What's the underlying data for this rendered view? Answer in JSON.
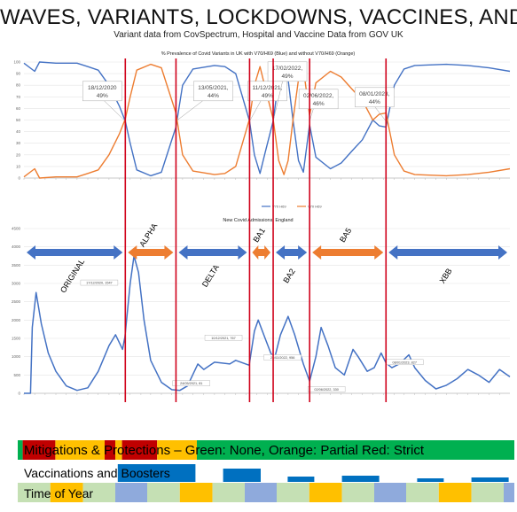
{
  "header": {
    "title": "WAVES, VARIANTS, LOCKDOWNS, VACCINES, AND STUFF",
    "subtitle": "Variant data from CovSpectrum, Hospital and Vaccine Data from GOV UK"
  },
  "bottom_panel": {
    "mitigation_label": "Mitigations & Protections – Green: None, Orange: Partial Red: Strict",
    "vaccination_label": "Vaccinations and Boosters",
    "time_of_year_label": "Time of Year"
  },
  "colors": {
    "blue_series": "#4472c4",
    "orange_series": "#ed7d31",
    "red_lines": "#d0021b",
    "arrow_blue": "#4472c4",
    "arrow_orange": "#ed7d31",
    "mit_green": "#00b050",
    "mit_red": "#c00000",
    "mit_orange": "#ffc000",
    "vacc_blue": "#0070c0",
    "toy_blue": "#8faadc",
    "toy_yellow": "#ffc000",
    "toy_green": "#c5e0b4"
  },
  "chart_data": [
    {
      "type": "line",
      "title": "% Prevalence of Covid Variants in UK with V70/H69 (Blue) and without V70/H69 (Orange)",
      "ylim": [
        0,
        100
      ],
      "yticks": [
        "0",
        "10",
        "20",
        "30",
        "40",
        "50",
        "60",
        "70",
        "80",
        "90",
        "100"
      ],
      "legend": [
        "V70 H69",
        "V70 H69"
      ],
      "legend_position": "bottom",
      "x_range": [
        "2020-03-01",
        "2023-12-31"
      ],
      "series": [
        {
          "key": "with",
          "points": [
            [
              "2020-03-01",
              99
            ],
            [
              "2020-04-01",
              92
            ],
            [
              "2020-04-15",
              100
            ],
            [
              "2020-06-01",
              99
            ],
            [
              "2020-08-01",
              99
            ],
            [
              "2020-09-01",
              96
            ],
            [
              "2020-10-01",
              93
            ],
            [
              "2020-11-01",
              80
            ],
            [
              "2020-12-01",
              62
            ],
            [
              "2020-12-18",
              49
            ],
            [
              "2021-01-01",
              30
            ],
            [
              "2021-01-20",
              7
            ],
            [
              "2021-03-01",
              2
            ],
            [
              "2021-04-01",
              5
            ],
            [
              "2021-05-13",
              44
            ],
            [
              "2021-06-01",
              80
            ],
            [
              "2021-07-01",
              94
            ],
            [
              "2021-09-01",
              97
            ],
            [
              "2021-10-01",
              96
            ],
            [
              "2021-11-01",
              90
            ],
            [
              "2021-12-11",
              49
            ],
            [
              "2021-12-25",
              20
            ],
            [
              "2022-01-10",
              4
            ],
            [
              "2022-01-25",
              22
            ],
            [
              "2022-02-17",
              49
            ],
            [
              "2022-03-05",
              85
            ],
            [
              "2022-03-20",
              97
            ],
            [
              "2022-04-01",
              85
            ],
            [
              "2022-04-15",
              50
            ],
            [
              "2022-05-01",
              15
            ],
            [
              "2022-05-15",
              5
            ],
            [
              "2022-06-02",
              46
            ],
            [
              "2022-06-20",
              18
            ],
            [
              "2022-08-01",
              8
            ],
            [
              "2022-09-01",
              13
            ],
            [
              "2022-10-01",
              23
            ],
            [
              "2022-11-01",
              33
            ],
            [
              "2022-12-01",
              50
            ],
            [
              "2022-12-20",
              45
            ],
            [
              "2023-01-08",
              44
            ],
            [
              "2023-02-01",
              80
            ],
            [
              "2023-03-01",
              94
            ],
            [
              "2023-04-01",
              97
            ],
            [
              "2023-07-01",
              98
            ],
            [
              "2023-09-01",
              97
            ],
            [
              "2023-11-01",
              95
            ],
            [
              "2023-12-31",
              92
            ]
          ]
        },
        {
          "key": "without",
          "points": [
            [
              "2020-03-01",
              1
            ],
            [
              "2020-04-01",
              8
            ],
            [
              "2020-04-15",
              0
            ],
            [
              "2020-06-01",
              1
            ],
            [
              "2020-08-01",
              1
            ],
            [
              "2020-09-01",
              4
            ],
            [
              "2020-10-01",
              7
            ],
            [
              "2020-11-01",
              20
            ],
            [
              "2020-12-01",
              38
            ],
            [
              "2020-12-18",
              51
            ],
            [
              "2021-01-01",
              70
            ],
            [
              "2021-01-20",
              93
            ],
            [
              "2021-03-01",
              98
            ],
            [
              "2021-04-01",
              95
            ],
            [
              "2021-05-13",
              56
            ],
            [
              "2021-06-01",
              20
            ],
            [
              "2021-07-01",
              6
            ],
            [
              "2021-09-01",
              3
            ],
            [
              "2021-10-01",
              4
            ],
            [
              "2021-11-01",
              10
            ],
            [
              "2021-12-11",
              51
            ],
            [
              "2021-12-25",
              80
            ],
            [
              "2022-01-10",
              96
            ],
            [
              "2022-01-25",
              78
            ],
            [
              "2022-02-17",
              51
            ],
            [
              "2022-03-05",
              15
            ],
            [
              "2022-03-20",
              3
            ],
            [
              "2022-04-01",
              15
            ],
            [
              "2022-04-15",
              50
            ],
            [
              "2022-05-01",
              85
            ],
            [
              "2022-05-15",
              95
            ],
            [
              "2022-06-02",
              54
            ],
            [
              "2022-06-20",
              82
            ],
            [
              "2022-08-01",
              92
            ],
            [
              "2022-09-01",
              87
            ],
            [
              "2022-10-01",
              77
            ],
            [
              "2022-11-01",
              67
            ],
            [
              "2022-12-01",
              50
            ],
            [
              "2022-12-20",
              55
            ],
            [
              "2023-01-08",
              56
            ],
            [
              "2023-02-01",
              20
            ],
            [
              "2023-03-01",
              6
            ],
            [
              "2023-04-01",
              3
            ],
            [
              "2023-07-01",
              2
            ],
            [
              "2023-09-01",
              3
            ],
            [
              "2023-11-01",
              5
            ],
            [
              "2023-12-31",
              8
            ]
          ]
        }
      ],
      "annotations": [
        {
          "date": "2020-12-18",
          "text1": "18/12/2020",
          "text2": "49%"
        },
        {
          "date": "2021-05-13",
          "text1": "13/05/2021,",
          "text2": "44%"
        },
        {
          "date": "2021-12-11",
          "text1": "11/12/2021,",
          "text2": "49%"
        },
        {
          "date": "2022-02-17",
          "text1": "17/02/2022,",
          "text2": "49%"
        },
        {
          "date": "2022-06-02",
          "text1": "02/06/2022,",
          "text2": "46%"
        },
        {
          "date": "2023-01-08",
          "text1": "08/01/2023,",
          "text2": "44%"
        }
      ]
    },
    {
      "type": "line",
      "title": "New Covid Admissions, England",
      "ylim": [
        0,
        4500
      ],
      "yticks": [
        "0",
        "500",
        "1000",
        "1500",
        "2000",
        "2500",
        "3000",
        "3500",
        "4000",
        "4500"
      ],
      "x_range": [
        "2020-03-01",
        "2023-12-31"
      ],
      "series": [
        {
          "key": "admissions",
          "points": [
            [
              "2020-03-01",
              0
            ],
            [
              "2020-03-20",
              0
            ],
            [
              "2020-03-25",
              1800
            ],
            [
              "2020-04-05",
              2750
            ],
            [
              "2020-04-20",
              1900
            ],
            [
              "2020-05-10",
              1100
            ],
            [
              "2020-06-01",
              600
            ],
            [
              "2020-07-01",
              200
            ],
            [
              "2020-08-01",
              80
            ],
            [
              "2020-09-01",
              150
            ],
            [
              "2020-10-01",
              600
            ],
            [
              "2020-11-01",
              1300
            ],
            [
              "2020-11-20",
              1600
            ],
            [
              "2020-12-10",
              1200
            ],
            [
              "2020-12-17",
              1547
            ],
            [
              "2021-01-01",
              3000
            ],
            [
              "2021-01-12",
              3750
            ],
            [
              "2021-01-25",
              3300
            ],
            [
              "2021-02-10",
              2000
            ],
            [
              "2021-03-01",
              900
            ],
            [
              "2021-04-01",
              300
            ],
            [
              "2021-05-01",
              100
            ],
            [
              "2021-05-24",
              81
            ],
            [
              "2021-06-15",
              200
            ],
            [
              "2021-07-15",
              800
            ],
            [
              "2021-08-01",
              650
            ],
            [
              "2021-09-01",
              850
            ],
            [
              "2021-10-15",
              800
            ],
            [
              "2021-11-01",
              900
            ],
            [
              "2021-12-10",
              767
            ],
            [
              "2021-12-25",
              1700
            ],
            [
              "2022-01-05",
              2000
            ],
            [
              "2022-01-25",
              1500
            ],
            [
              "2022-02-10",
              1100
            ],
            [
              "2022-02-21",
              956
            ],
            [
              "2022-03-10",
              1600
            ],
            [
              "2022-04-01",
              2100
            ],
            [
              "2022-04-20",
              1600
            ],
            [
              "2022-05-15",
              800
            ],
            [
              "2022-06-02",
              330
            ],
            [
              "2022-06-20",
              1000
            ],
            [
              "2022-07-05",
              1800
            ],
            [
              "2022-07-25",
              1300
            ],
            [
              "2022-08-15",
              700
            ],
            [
              "2022-09-10",
              500
            ],
            [
              "2022-10-05",
              1200
            ],
            [
              "2022-10-20",
              1000
            ],
            [
              "2022-11-15",
              600
            ],
            [
              "2022-12-05",
              700
            ],
            [
              "2022-12-25",
              1100
            ],
            [
              "2023-01-08",
              827
            ],
            [
              "2023-01-25",
              700
            ],
            [
              "2023-02-15",
              800
            ],
            [
              "2023-03-15",
              1050
            ],
            [
              "2023-04-01",
              700
            ],
            [
              "2023-05-01",
              350
            ],
            [
              "2023-06-01",
              120
            ],
            [
              "2023-07-01",
              220
            ],
            [
              "2023-08-01",
              400
            ],
            [
              "2023-09-01",
              650
            ],
            [
              "2023-10-01",
              500
            ],
            [
              "2023-11-01",
              300
            ],
            [
              "2023-12-01",
              650
            ],
            [
              "2023-12-31",
              450
            ]
          ]
        }
      ],
      "annotations": [
        {
          "date": "2020-12-17",
          "text": "17/12/2020, 1547"
        },
        {
          "date": "2021-05-24",
          "text": "24/05/2021, 81"
        },
        {
          "date": "2021-12-10",
          "text": "10/12/2021, 767"
        },
        {
          "date": "2022-02-21",
          "text": "21/02/2022, 956"
        },
        {
          "date": "2022-06-02",
          "text": "02/06/2022, 330"
        },
        {
          "date": "2023-01-08",
          "text": "08/01/2023, 827"
        }
      ],
      "variant_periods": [
        {
          "label": "ORIGINAL",
          "label_position": "below",
          "color": "blue",
          "start": "2020-03-01",
          "end": "2020-12-18"
        },
        {
          "label": "ALPHA",
          "label_position": "above",
          "color": "orange",
          "start": "2020-12-18",
          "end": "2021-05-13"
        },
        {
          "label": "DELTA",
          "label_position": "below",
          "color": "blue",
          "start": "2021-05-13",
          "end": "2021-12-11"
        },
        {
          "label": "BA1",
          "label_position": "above",
          "color": "orange",
          "start": "2021-12-11",
          "end": "2022-02-17"
        },
        {
          "label": "BA2",
          "label_position": "below",
          "color": "blue",
          "start": "2022-02-17",
          "end": "2022-06-02"
        },
        {
          "label": "BA5",
          "label_position": "above",
          "color": "orange",
          "start": "2022-06-02",
          "end": "2023-01-08"
        },
        {
          "label": "XBB",
          "label_position": "below",
          "color": "blue",
          "start": "2023-01-08",
          "end": "2023-12-31"
        }
      ]
    }
  ],
  "transition_dates": [
    "2020-12-18",
    "2021-05-13",
    "2021-12-11",
    "2022-02-17",
    "2022-06-02",
    "2023-01-08"
  ],
  "mitigation_segments": [
    {
      "color": "green",
      "start": "2020-03-01",
      "end": "2020-03-15"
    },
    {
      "color": "red",
      "start": "2020-03-15",
      "end": "2020-06-15"
    },
    {
      "color": "orange",
      "start": "2020-06-15",
      "end": "2020-11-01"
    },
    {
      "color": "red",
      "start": "2020-11-01",
      "end": "2020-12-01"
    },
    {
      "color": "orange",
      "start": "2020-12-01",
      "end": "2020-12-20"
    },
    {
      "color": "red",
      "start": "2020-12-20",
      "end": "2021-03-29"
    },
    {
      "color": "orange",
      "start": "2021-03-29",
      "end": "2021-07-19"
    },
    {
      "color": "green",
      "start": "2021-07-19",
      "end": "2023-12-31"
    }
  ],
  "vaccination_bars": [
    {
      "start": "2020-12-08",
      "end": "2021-07-15",
      "level": 1.0
    },
    {
      "start": "2021-10-01",
      "end": "2022-01-15",
      "level": 0.75
    },
    {
      "start": "2022-04-01",
      "end": "2022-06-15",
      "level": 0.3
    },
    {
      "start": "2022-09-01",
      "end": "2022-12-15",
      "level": 0.35
    },
    {
      "start": "2023-04-01",
      "end": "2023-06-15",
      "level": 0.2
    },
    {
      "start": "2023-09-01",
      "end": "2023-12-15",
      "level": 0.25
    }
  ],
  "time_of_year_segments": [
    {
      "season": "spring",
      "start": "2020-03-01",
      "end": "2020-06-01"
    },
    {
      "season": "summer",
      "start": "2020-06-01",
      "end": "2020-09-01"
    },
    {
      "season": "autumn",
      "start": "2020-09-01",
      "end": "2020-12-01"
    },
    {
      "season": "winter",
      "start": "2020-12-01",
      "end": "2021-03-01"
    },
    {
      "season": "spring",
      "start": "2021-03-01",
      "end": "2021-06-01"
    },
    {
      "season": "summer",
      "start": "2021-06-01",
      "end": "2021-09-01"
    },
    {
      "season": "autumn",
      "start": "2021-09-01",
      "end": "2021-12-01"
    },
    {
      "season": "winter",
      "start": "2021-12-01",
      "end": "2022-03-01"
    },
    {
      "season": "spring",
      "start": "2022-03-01",
      "end": "2022-06-01"
    },
    {
      "season": "summer",
      "start": "2022-06-01",
      "end": "2022-09-01"
    },
    {
      "season": "autumn",
      "start": "2022-09-01",
      "end": "2022-12-01"
    },
    {
      "season": "winter",
      "start": "2022-12-01",
      "end": "2023-03-01"
    },
    {
      "season": "spring",
      "start": "2023-03-01",
      "end": "2023-06-01"
    },
    {
      "season": "summer",
      "start": "2023-06-01",
      "end": "2023-09-01"
    },
    {
      "season": "autumn",
      "start": "2023-09-01",
      "end": "2023-12-01"
    },
    {
      "season": "winter",
      "start": "2023-12-01",
      "end": "2023-12-31"
    }
  ]
}
